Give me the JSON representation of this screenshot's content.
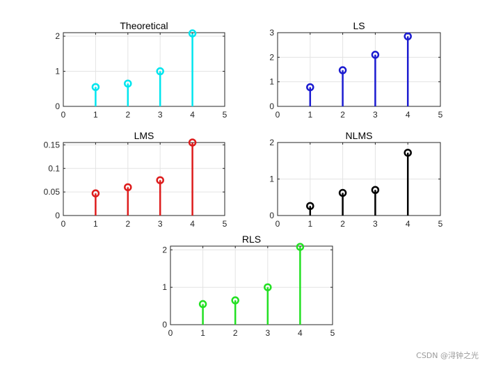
{
  "chart_data": [
    {
      "type": "stem",
      "title": "Theoretical",
      "x": [
        1,
        2,
        3,
        4
      ],
      "values": [
        0.55,
        0.65,
        1.0,
        2.08
      ],
      "xlim": [
        0,
        5
      ],
      "ylim": [
        0,
        2.1
      ],
      "xticks": [
        "0",
        "1",
        "2",
        "3",
        "4",
        "5"
      ],
      "yticks": [
        "0",
        "1",
        "2"
      ],
      "ytick_values": [
        0,
        1,
        2
      ],
      "color": "#00e5ee",
      "grid": true
    },
    {
      "type": "stem",
      "title": "LS",
      "x": [
        1,
        2,
        3,
        4
      ],
      "values": [
        0.78,
        1.47,
        2.1,
        2.85
      ],
      "xlim": [
        0,
        5
      ],
      "ylim": [
        0,
        3
      ],
      "xticks": [
        "0",
        "1",
        "2",
        "3",
        "4",
        "5"
      ],
      "yticks": [
        "0",
        "1",
        "2",
        "3"
      ],
      "ytick_values": [
        0,
        1,
        2,
        3
      ],
      "color": "#1b1bd0",
      "grid": true
    },
    {
      "type": "stem",
      "title": "LMS",
      "x": [
        1,
        2,
        3,
        4
      ],
      "values": [
        0.047,
        0.06,
        0.075,
        0.155
      ],
      "xlim": [
        0,
        5
      ],
      "ylim": [
        0,
        0.155
      ],
      "xticks": [
        "0",
        "1",
        "2",
        "3",
        "4",
        "5"
      ],
      "yticks": [
        "0",
        "0.05",
        "0.1",
        "0.15"
      ],
      "ytick_values": [
        0,
        0.05,
        0.1,
        0.15
      ],
      "color": "#dd1c1c",
      "grid": true
    },
    {
      "type": "stem",
      "title": "NLMS",
      "x": [
        1,
        2,
        3,
        4
      ],
      "values": [
        0.26,
        0.62,
        0.7,
        1.72
      ],
      "xlim": [
        0,
        5
      ],
      "ylim": [
        0,
        2
      ],
      "xticks": [
        "0",
        "1",
        "2",
        "3",
        "4",
        "5"
      ],
      "yticks": [
        "0",
        "1",
        "2"
      ],
      "ytick_values": [
        0,
        1,
        2
      ],
      "color": "#000000",
      "grid": true
    },
    {
      "type": "stem",
      "title": "RLS",
      "x": [
        1,
        2,
        3,
        4
      ],
      "values": [
        0.55,
        0.65,
        1.0,
        2.08
      ],
      "xlim": [
        0,
        5
      ],
      "ylim": [
        0,
        2.1
      ],
      "xticks": [
        "0",
        "1",
        "2",
        "3",
        "4",
        "5"
      ],
      "yticks": [
        "0",
        "1",
        "2"
      ],
      "ytick_values": [
        0,
        1,
        2
      ],
      "color": "#22e022",
      "grid": true
    }
  ],
  "watermark": "CSDN @浔钟之光"
}
